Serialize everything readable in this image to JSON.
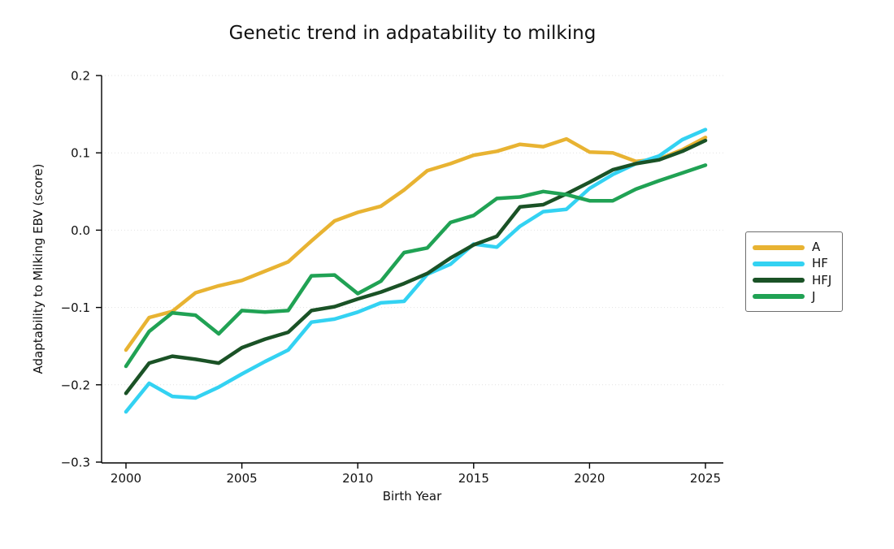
{
  "title": "Genetic trend in adpatability to milking",
  "axes": {
    "xlabel": "Birth Year",
    "ylabel": "Adaptability to Milking EBV (score)",
    "x_tick_labels": [
      "2000",
      "2005",
      "2010",
      "2015",
      "2020",
      "2025"
    ],
    "y_tick_labels": [
      "0.2",
      "0.1",
      "0.0",
      "−0.1",
      "−0.2",
      "−0.3"
    ]
  },
  "legend": {
    "entries": [
      {
        "label": "A",
        "color": "#e8b332"
      },
      {
        "label": "HF",
        "color": "#33d2f2"
      },
      {
        "label": "HFJ",
        "color": "#1a5226"
      },
      {
        "label": "J",
        "color": "#20a254"
      }
    ]
  },
  "chart_data": {
    "type": "line",
    "title": "Genetic trend in adpatability to milking",
    "xlabel": "Birth Year",
    "ylabel": "Adaptability to Milking EBV (score)",
    "x": [
      2000,
      2001,
      2002,
      2003,
      2004,
      2005,
      2006,
      2007,
      2008,
      2009,
      2010,
      2011,
      2012,
      2013,
      2014,
      2015,
      2016,
      2017,
      2018,
      2019,
      2020,
      2021,
      2022,
      2023,
      2024,
      2025
    ],
    "series": [
      {
        "name": "A",
        "color": "#e8b332",
        "values": [
          -0.155,
          -0.113,
          -0.105,
          -0.081,
          -0.072,
          -0.065,
          -0.053,
          -0.041,
          -0.014,
          0.012,
          0.023,
          0.031,
          0.052,
          0.077,
          0.086,
          0.097,
          0.102,
          0.111,
          0.108,
          0.118,
          0.101,
          0.1,
          0.089,
          0.092,
          0.104,
          0.12
        ]
      },
      {
        "name": "HF",
        "color": "#33d2f2",
        "values": [
          -0.235,
          -0.198,
          -0.215,
          -0.217,
          -0.203,
          -0.186,
          -0.17,
          -0.155,
          -0.119,
          -0.115,
          -0.106,
          -0.094,
          -0.092,
          -0.057,
          -0.044,
          -0.018,
          -0.022,
          0.005,
          0.024,
          0.027,
          0.054,
          0.072,
          0.086,
          0.096,
          0.117,
          0.13
        ]
      },
      {
        "name": "HFJ",
        "color": "#1a5226",
        "values": [
          -0.211,
          -0.172,
          -0.163,
          -0.167,
          -0.172,
          -0.152,
          -0.141,
          -0.132,
          -0.104,
          -0.099,
          -0.089,
          -0.08,
          -0.069,
          -0.056,
          -0.036,
          -0.019,
          -0.008,
          0.03,
          0.033,
          0.047,
          0.062,
          0.078,
          0.086,
          0.091,
          0.102,
          0.116
        ]
      },
      {
        "name": "J",
        "color": "#20a254",
        "values": [
          -0.176,
          -0.131,
          -0.107,
          -0.11,
          -0.134,
          -0.104,
          -0.106,
          -0.104,
          -0.059,
          -0.058,
          -0.082,
          -0.066,
          -0.029,
          -0.023,
          0.01,
          0.019,
          0.041,
          0.043,
          0.05,
          0.046,
          0.038,
          0.038,
          0.053,
          0.064,
          0.074,
          0.084
        ]
      }
    ],
    "x_ticks": [
      2000,
      2005,
      2010,
      2015,
      2020,
      2025
    ],
    "y_ticks": [
      0.2,
      0.1,
      0.0,
      -0.1,
      -0.2,
      -0.3
    ],
    "xlim": [
      1998.95,
      2025.77
    ],
    "ylim": [
      -0.3,
      0.2
    ],
    "grid": "faint dotted horizontal gridlines at y ticks",
    "legend_position": "center right, outside axes"
  }
}
